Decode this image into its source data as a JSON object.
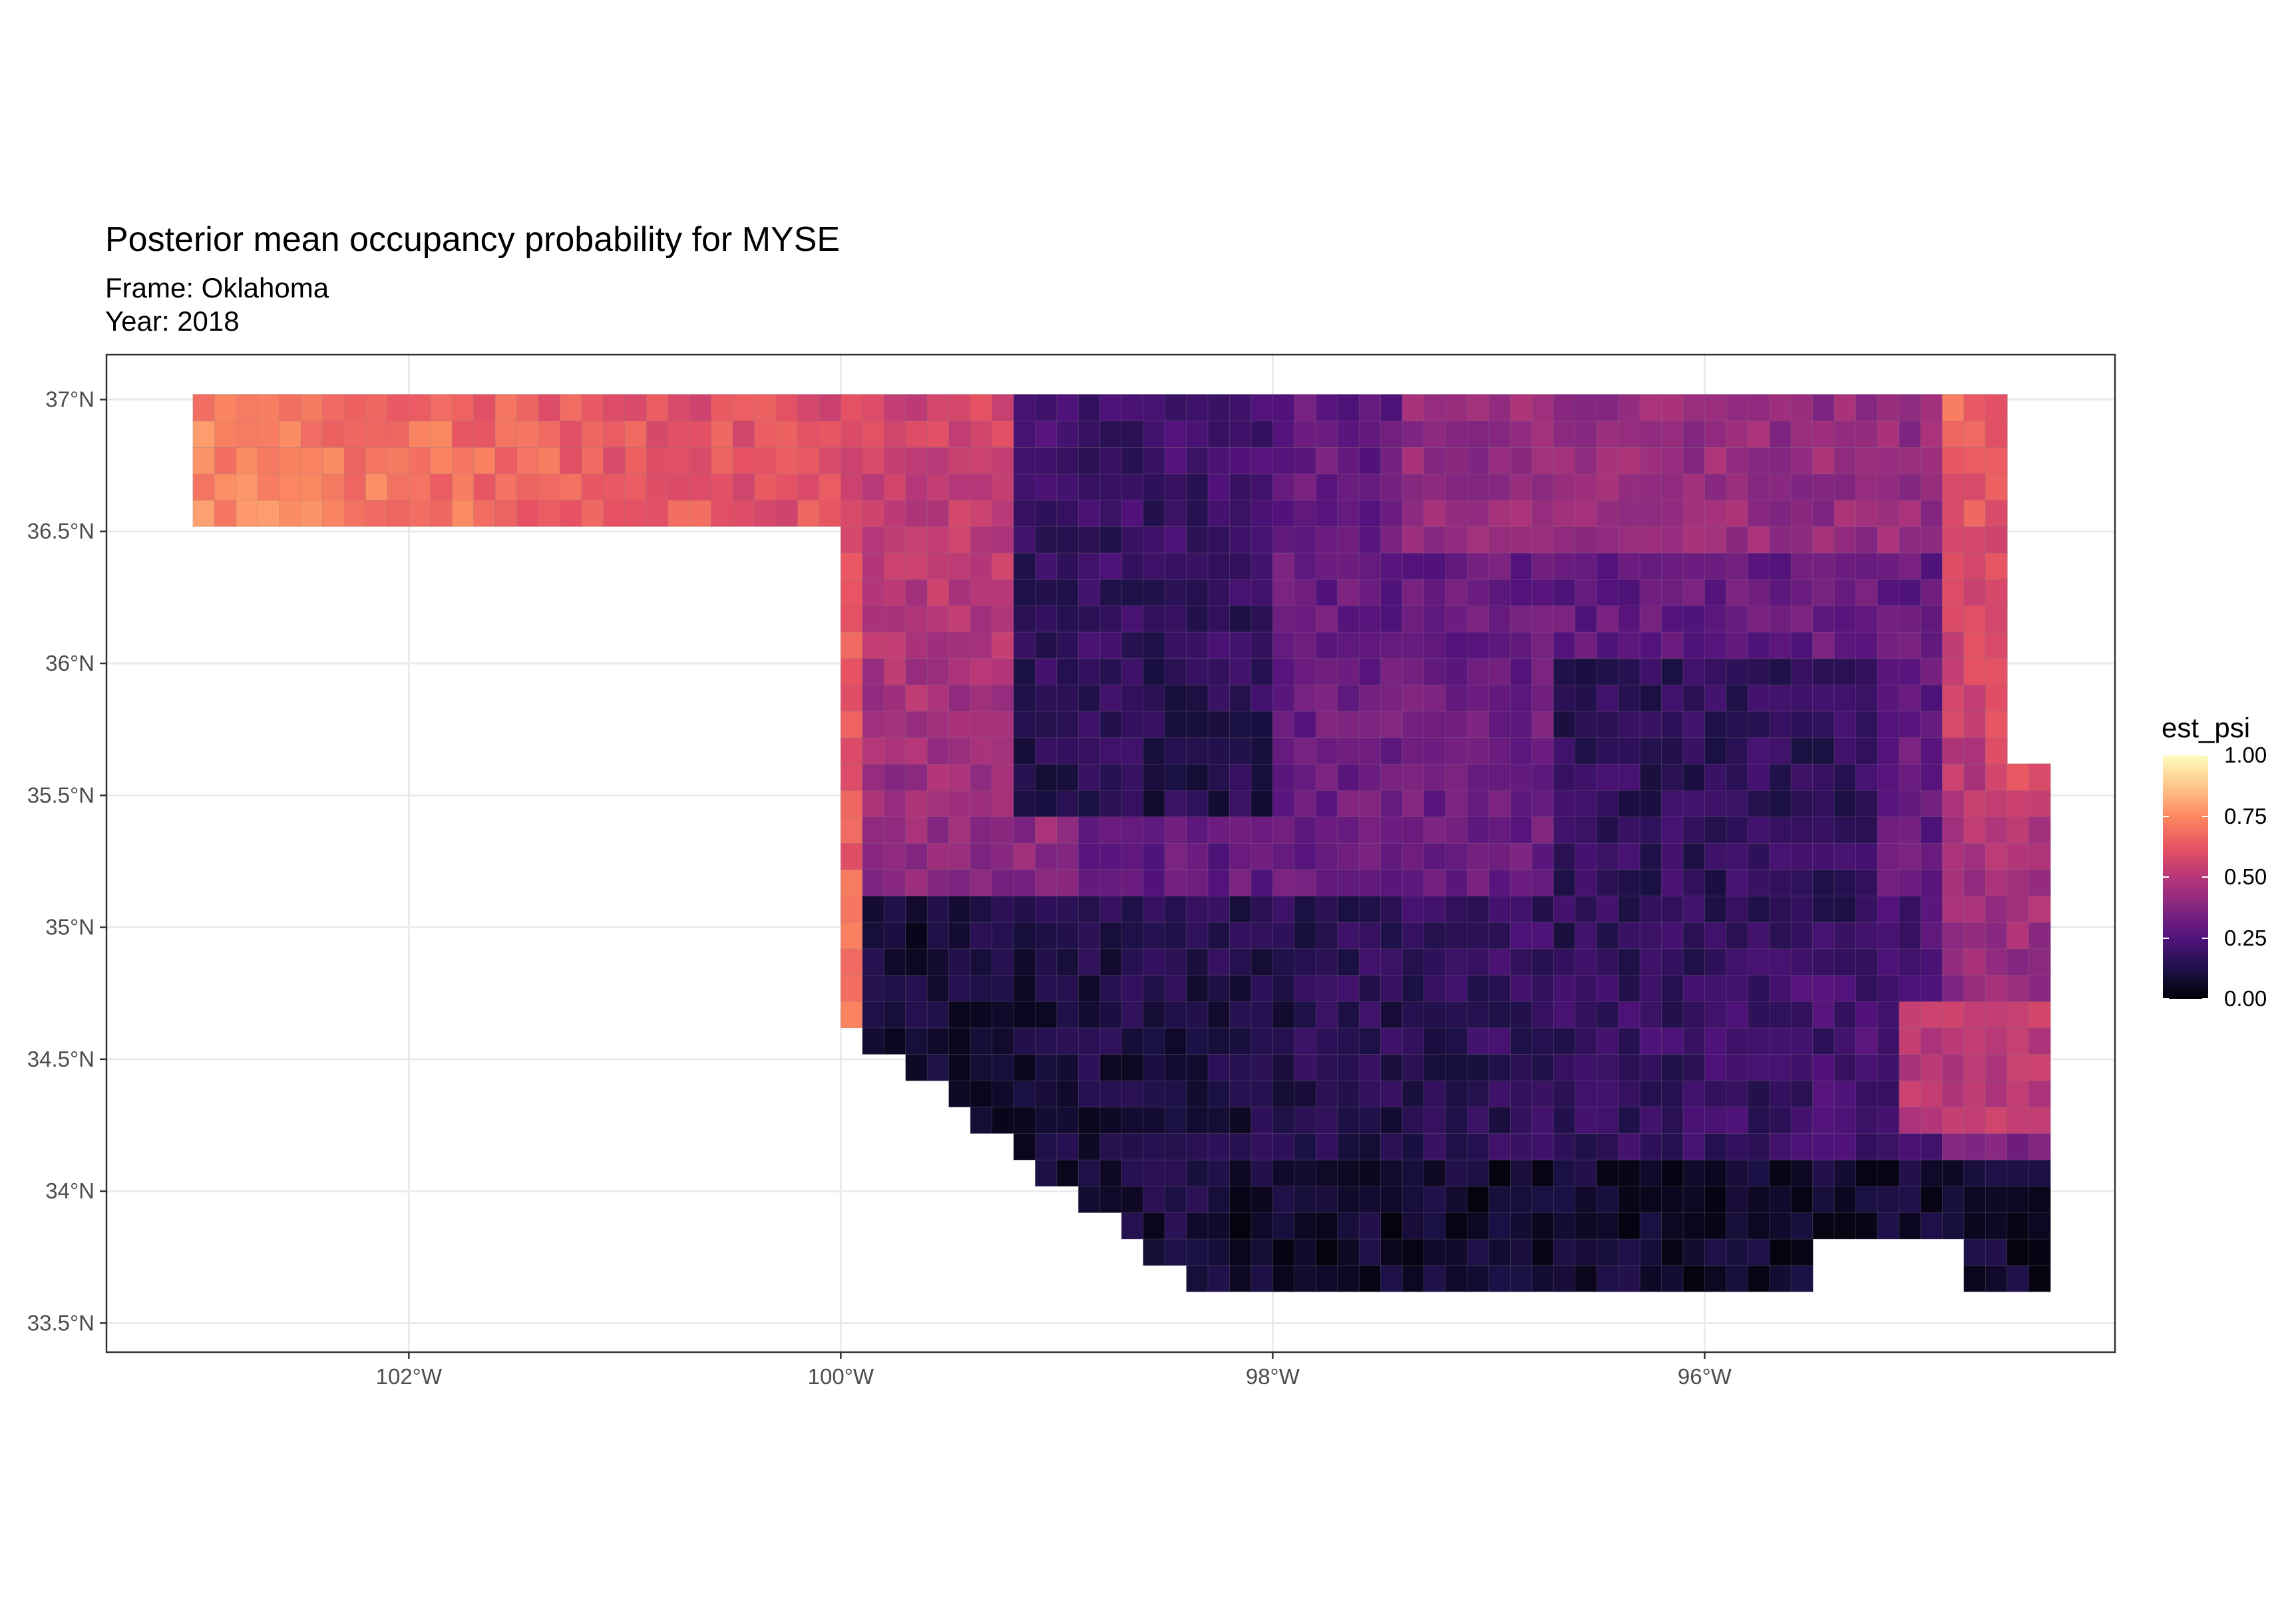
{
  "title": "Posterior mean occupancy probability for MYSE",
  "subtitle": {
    "frame": "Frame: Oklahoma",
    "year": "Year: 2018"
  },
  "map": {
    "x_axis": {
      "ticks": [
        {
          "value": -102,
          "label": "102°W"
        },
        {
          "value": -100,
          "label": "100°W"
        },
        {
          "value": -98,
          "label": "98°W"
        },
        {
          "value": -96,
          "label": "96°W"
        }
      ]
    },
    "y_axis": {
      "ticks": [
        {
          "value": 37.0,
          "label": "37°N"
        },
        {
          "value": 36.5,
          "label": "36.5°N"
        },
        {
          "value": 36.0,
          "label": "36°N"
        },
        {
          "value": 35.5,
          "label": "35.5°N"
        },
        {
          "value": 35.0,
          "label": "35°N"
        },
        {
          "value": 34.5,
          "label": "34.5°N"
        },
        {
          "value": 34.0,
          "label": "34°N"
        },
        {
          "value": 33.5,
          "label": "33.5°N"
        }
      ]
    },
    "xlim": [
      -103.4,
      -94.1
    ],
    "ylim": [
      33.39,
      37.17
    ],
    "grid": true,
    "fill_scale": "magma"
  },
  "legend": {
    "title": "est_psi",
    "labels": [
      {
        "value": 1.0,
        "label": "1.00"
      },
      {
        "value": 0.75,
        "label": "0.75"
      },
      {
        "value": 0.5,
        "label": "0.50"
      },
      {
        "value": 0.25,
        "label": "0.25"
      },
      {
        "value": 0.0,
        "label": "0.00"
      }
    ]
  }
}
